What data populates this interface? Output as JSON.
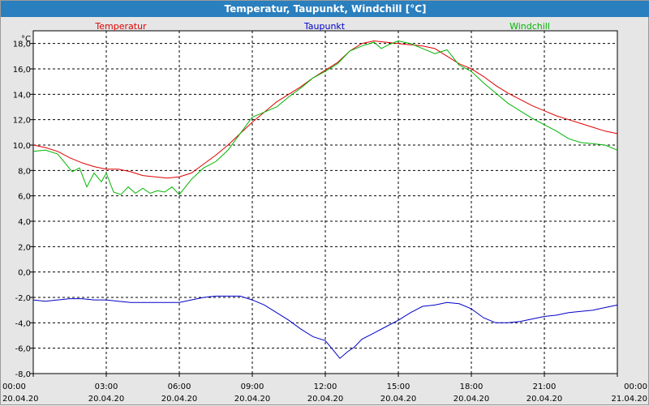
{
  "window": {
    "title": "Temperatur, Taupunkt, Windchill [°C]"
  },
  "chart_data": {
    "type": "line",
    "title": "Temperatur, Taupunkt, Windchill [°C]",
    "ylabel": "°C",
    "ylim": [
      -8,
      19
    ],
    "yticks": [
      {
        "v": 18,
        "label": "18,0"
      },
      {
        "v": 16,
        "label": "16,0"
      },
      {
        "v": 14,
        "label": "14,0"
      },
      {
        "v": 12,
        "label": "12,0"
      },
      {
        "v": 10,
        "label": "10,0"
      },
      {
        "v": 8,
        "label": "8,0"
      },
      {
        "v": 6,
        "label": "6,0"
      },
      {
        "v": 4,
        "label": "4,0"
      },
      {
        "v": 2,
        "label": "2,0"
      },
      {
        "v": 0,
        "label": "0,0"
      },
      {
        "v": -2,
        "label": "-2,0"
      },
      {
        "v": -4,
        "label": "-4,0"
      },
      {
        "v": -6,
        "label": "-6,0"
      },
      {
        "v": -8,
        "label": "-8,0"
      }
    ],
    "xlim": [
      0,
      24
    ],
    "xticks": [
      {
        "h": 0,
        "time": "00:00",
        "date": "20.04.20"
      },
      {
        "h": 3,
        "time": "03:00",
        "date": "20.04.20"
      },
      {
        "h": 6,
        "time": "06:00",
        "date": "20.04.20"
      },
      {
        "h": 9,
        "time": "09:00",
        "date": "20.04.20"
      },
      {
        "h": 12,
        "time": "12:00",
        "date": "20.04.20"
      },
      {
        "h": 15,
        "time": "15:00",
        "date": "20.04.20"
      },
      {
        "h": 18,
        "time": "18:00",
        "date": "20.04.20"
      },
      {
        "h": 21,
        "time": "21:00",
        "date": "20.04.20"
      },
      {
        "h": 24,
        "time": "00:00",
        "date": "21.04.20"
      }
    ],
    "grid": true,
    "legend_position": "top",
    "series": [
      {
        "name": "Temperatur",
        "color": "#e00000",
        "x": [
          0,
          0.5,
          1,
          1.5,
          2,
          2.5,
          3,
          3.5,
          4,
          4.5,
          5,
          5.5,
          6,
          6.5,
          7,
          7.5,
          8,
          8.5,
          9,
          9.5,
          10,
          10.5,
          11,
          11.5,
          12,
          12.5,
          13,
          13.5,
          14,
          14.5,
          15,
          15.5,
          16,
          16.5,
          17,
          17.5,
          18,
          18.5,
          19,
          19.5,
          20,
          20.5,
          21,
          21.5,
          22,
          22.5,
          23,
          23.5,
          24
        ],
        "y": [
          10.0,
          9.8,
          9.5,
          9.0,
          8.6,
          8.3,
          8.1,
          8.1,
          7.9,
          7.6,
          7.5,
          7.4,
          7.5,
          7.8,
          8.5,
          9.2,
          10.0,
          10.9,
          11.8,
          12.6,
          13.4,
          14.0,
          14.6,
          15.3,
          15.9,
          16.5,
          17.4,
          18.0,
          18.2,
          18.1,
          18.0,
          17.9,
          17.8,
          17.6,
          17.0,
          16.4,
          16.0,
          15.4,
          14.7,
          14.1,
          13.6,
          13.1,
          12.7,
          12.3,
          12.0,
          11.7,
          11.4,
          11.1,
          10.9
        ]
      },
      {
        "name": "Taupunkt",
        "color": "#0000c8",
        "x": [
          0,
          0.5,
          1,
          1.5,
          2,
          2.5,
          3,
          3.5,
          4,
          4.5,
          5,
          5.5,
          6,
          6.5,
          7,
          7.5,
          8,
          8.5,
          9,
          9.5,
          10,
          10.5,
          11,
          11.5,
          12,
          12.3,
          12.6,
          12.9,
          13.2,
          13.5,
          14,
          14.5,
          15,
          15.5,
          16,
          16.5,
          17,
          17.5,
          18,
          18.5,
          19,
          19.5,
          20,
          20.5,
          21,
          21.5,
          22,
          22.5,
          23,
          23.5,
          24
        ],
        "y": [
          -2.2,
          -2.3,
          -2.2,
          -2.1,
          -2.1,
          -2.2,
          -2.2,
          -2.3,
          -2.4,
          -2.4,
          -2.4,
          -2.4,
          -2.4,
          -2.2,
          -2.0,
          -1.9,
          -1.9,
          -1.9,
          -2.2,
          -2.6,
          -3.2,
          -3.8,
          -4.5,
          -5.1,
          -5.4,
          -6.1,
          -6.8,
          -6.3,
          -5.9,
          -5.3,
          -4.8,
          -4.3,
          -3.8,
          -3.2,
          -2.7,
          -2.6,
          -2.4,
          -2.5,
          -2.9,
          -3.6,
          -4.0,
          -4.0,
          -3.9,
          -3.7,
          -3.5,
          -3.4,
          -3.2,
          -3.1,
          -3.0,
          -2.8,
          -2.6
        ]
      },
      {
        "name": "Windchill",
        "color": "#00b400",
        "x": [
          0,
          0.5,
          1,
          1.3,
          1.6,
          1.9,
          2.2,
          2.5,
          2.8,
          3,
          3.3,
          3.6,
          3.9,
          4.2,
          4.5,
          4.8,
          5.1,
          5.4,
          5.7,
          6,
          6.5,
          7,
          7.5,
          8,
          8.5,
          9,
          9.5,
          10,
          10.5,
          11,
          11.5,
          12,
          12.5,
          13,
          13.5,
          14,
          14.3,
          14.6,
          15,
          15.5,
          16,
          16.5,
          17,
          17.5,
          18,
          18.5,
          19,
          19.5,
          20,
          20.5,
          21,
          21.5,
          22,
          22.5,
          23,
          23.5,
          24
        ],
        "y": [
          9.5,
          9.6,
          9.3,
          8.6,
          7.9,
          8.2,
          6.7,
          7.8,
          7.1,
          7.8,
          6.3,
          6.1,
          6.7,
          6.2,
          6.6,
          6.2,
          6.4,
          6.3,
          6.7,
          6.1,
          7.3,
          8.2,
          8.7,
          9.6,
          10.9,
          12.2,
          12.6,
          13.0,
          13.8,
          14.5,
          15.3,
          15.8,
          16.4,
          17.4,
          17.8,
          18.1,
          17.6,
          17.9,
          18.2,
          18.0,
          17.6,
          17.2,
          17.5,
          16.3,
          15.8,
          14.9,
          14.1,
          13.3,
          12.7,
          12.1,
          11.6,
          11.1,
          10.5,
          10.2,
          10.1,
          10.0,
          9.6
        ]
      }
    ]
  }
}
